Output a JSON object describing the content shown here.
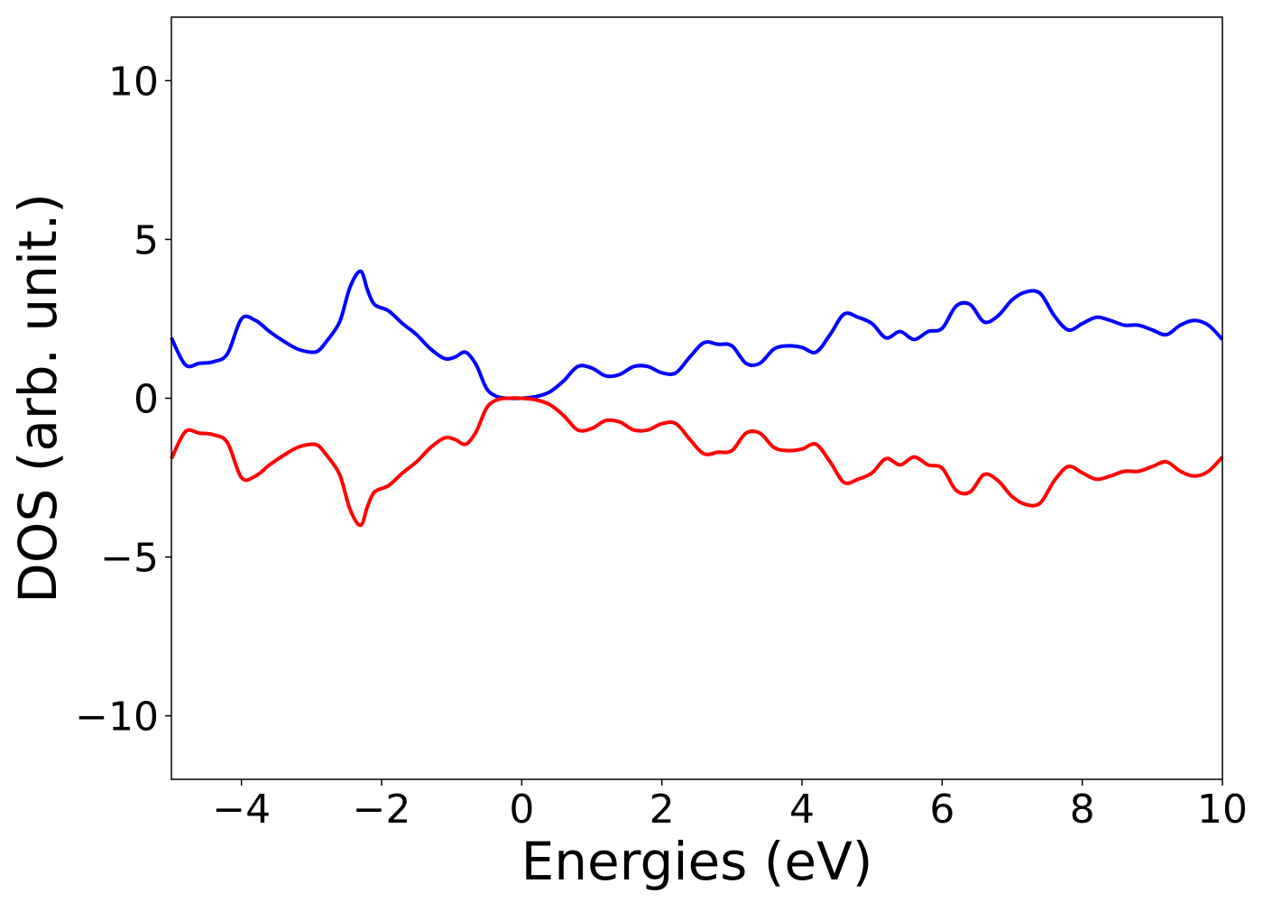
{
  "chart_data": {
    "type": "line",
    "title": "",
    "xlabel": "Energies (eV)",
    "ylabel": "DOS (arb. unit.)",
    "xlim": [
      -5,
      10
    ],
    "ylim": [
      -12,
      12
    ],
    "xticks": [
      -4,
      -2,
      0,
      2,
      4,
      6,
      8,
      10
    ],
    "yticks": [
      -10,
      -5,
      0,
      5,
      10
    ],
    "xtick_labels": [
      "−4",
      "−2",
      "0",
      "2",
      "4",
      "6",
      "8",
      "10"
    ],
    "ytick_labels": [
      "−10",
      "−5",
      "0",
      "5",
      "10"
    ],
    "grid": false,
    "legend": "none",
    "x": [
      -5.0,
      -4.8,
      -4.6,
      -4.4,
      -4.2,
      -4.0,
      -3.8,
      -3.6,
      -3.4,
      -3.2,
      -3.0,
      -2.9,
      -2.8,
      -2.6,
      -2.45,
      -2.3,
      -2.2,
      -2.1,
      -1.9,
      -1.7,
      -1.5,
      -1.3,
      -1.1,
      -0.95,
      -0.8,
      -0.65,
      -0.5,
      -0.35,
      -0.2,
      0.0,
      0.2,
      0.4,
      0.6,
      0.8,
      1.0,
      1.2,
      1.4,
      1.6,
      1.8,
      2.0,
      2.2,
      2.4,
      2.6,
      2.8,
      3.0,
      3.2,
      3.4,
      3.6,
      3.8,
      4.0,
      4.2,
      4.4,
      4.6,
      4.8,
      5.0,
      5.2,
      5.4,
      5.6,
      5.8,
      6.0,
      6.2,
      6.4,
      6.6,
      6.8,
      7.0,
      7.2,
      7.4,
      7.6,
      7.8,
      8.0,
      8.2,
      8.4,
      8.6,
      8.8,
      9.0,
      9.2,
      9.4,
      9.6,
      9.8,
      10.0
    ],
    "series": [
      {
        "color": "#0000ff",
        "values": [
          1.9,
          1.05,
          1.1,
          1.15,
          1.4,
          2.5,
          2.45,
          2.1,
          1.8,
          1.55,
          1.45,
          1.5,
          1.75,
          2.4,
          3.5,
          4.0,
          3.4,
          2.95,
          2.75,
          2.35,
          2.0,
          1.55,
          1.25,
          1.3,
          1.45,
          1.05,
          0.3,
          0.05,
          0.0,
          0.0,
          0.05,
          0.2,
          0.55,
          1.0,
          0.95,
          0.7,
          0.75,
          1.0,
          1.0,
          0.8,
          0.8,
          1.3,
          1.75,
          1.7,
          1.65,
          1.1,
          1.1,
          1.55,
          1.65,
          1.6,
          1.45,
          2.0,
          2.65,
          2.55,
          2.35,
          1.9,
          2.1,
          1.85,
          2.1,
          2.2,
          2.9,
          2.95,
          2.4,
          2.6,
          3.1,
          3.35,
          3.3,
          2.6,
          2.15,
          2.35,
          2.55,
          2.45,
          2.3,
          2.3,
          2.15,
          2.0,
          2.3,
          2.45,
          2.3,
          1.85
        ]
      },
      {
        "color": "#ff0000",
        "values": [
          -1.9,
          -1.05,
          -1.1,
          -1.15,
          -1.4,
          -2.5,
          -2.45,
          -2.1,
          -1.8,
          -1.55,
          -1.45,
          -1.5,
          -1.75,
          -2.4,
          -3.5,
          -4.0,
          -3.4,
          -2.95,
          -2.75,
          -2.35,
          -2.0,
          -1.55,
          -1.25,
          -1.3,
          -1.45,
          -1.05,
          -0.3,
          -0.05,
          0.0,
          0.0,
          -0.05,
          -0.2,
          -0.55,
          -1.0,
          -0.95,
          -0.7,
          -0.75,
          -1.0,
          -1.0,
          -0.8,
          -0.8,
          -1.3,
          -1.75,
          -1.7,
          -1.65,
          -1.1,
          -1.1,
          -1.55,
          -1.65,
          -1.6,
          -1.45,
          -2.0,
          -2.65,
          -2.55,
          -2.35,
          -1.9,
          -2.1,
          -1.85,
          -2.1,
          -2.2,
          -2.9,
          -2.95,
          -2.4,
          -2.6,
          -3.1,
          -3.35,
          -3.3,
          -2.6,
          -2.15,
          -2.35,
          -2.55,
          -2.45,
          -2.3,
          -2.3,
          -2.15,
          -2.0,
          -2.3,
          -2.45,
          -2.3,
          -1.85
        ]
      }
    ]
  }
}
